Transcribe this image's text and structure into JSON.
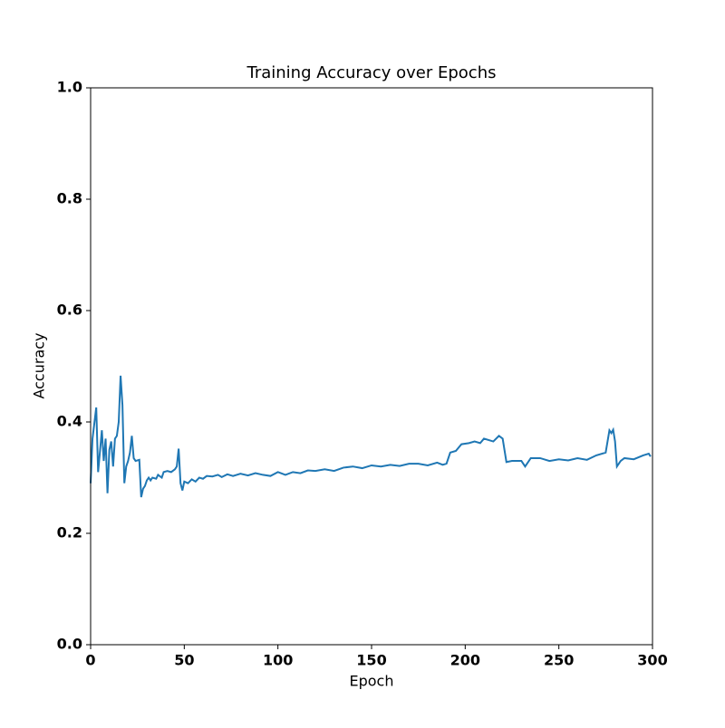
{
  "chart_data": {
    "type": "line",
    "title": "Training Accuracy over Epochs",
    "x_label": "Epoch",
    "y_label": "Accuracy",
    "x": [
      0,
      1,
      3,
      4,
      6,
      7,
      8,
      9,
      10,
      11,
      12,
      13,
      14,
      15,
      16,
      17,
      18,
      19,
      20,
      21,
      22,
      23,
      24,
      26,
      27,
      28,
      29,
      30,
      31,
      32,
      33,
      35,
      36,
      38,
      39,
      41,
      43,
      45,
      46,
      47,
      48,
      49,
      50,
      52,
      54,
      56,
      58,
      60,
      62,
      65,
      68,
      70,
      73,
      76,
      80,
      84,
      88,
      92,
      96,
      100,
      104,
      108,
      112,
      116,
      120,
      125,
      130,
      135,
      140,
      145,
      150,
      155,
      160,
      165,
      170,
      175,
      180,
      185,
      188,
      190,
      192,
      195,
      198,
      202,
      205,
      208,
      210,
      215,
      218,
      220,
      222,
      225,
      230,
      232,
      235,
      240,
      245,
      250,
      255,
      260,
      265,
      270,
      275,
      277,
      278,
      279,
      280,
      281,
      283,
      285,
      290,
      295,
      298,
      299
    ],
    "series": [
      {
        "name": "Accuracy",
        "color": "#1f77b4",
        "values": [
          0.29,
          0.37,
          0.426,
          0.31,
          0.385,
          0.33,
          0.37,
          0.272,
          0.35,
          0.365,
          0.32,
          0.37,
          0.375,
          0.4,
          0.483,
          0.43,
          0.29,
          0.32,
          0.33,
          0.345,
          0.375,
          0.335,
          0.33,
          0.332,
          0.265,
          0.28,
          0.285,
          0.295,
          0.3,
          0.295,
          0.3,
          0.298,
          0.305,
          0.3,
          0.31,
          0.312,
          0.31,
          0.315,
          0.32,
          0.352,
          0.29,
          0.277,
          0.293,
          0.29,
          0.297,
          0.293,
          0.3,
          0.298,
          0.303,
          0.302,
          0.305,
          0.301,
          0.306,
          0.303,
          0.307,
          0.304,
          0.308,
          0.305,
          0.303,
          0.31,
          0.305,
          0.31,
          0.308,
          0.313,
          0.312,
          0.315,
          0.312,
          0.318,
          0.32,
          0.317,
          0.322,
          0.32,
          0.323,
          0.321,
          0.325,
          0.325,
          0.322,
          0.327,
          0.323,
          0.325,
          0.345,
          0.348,
          0.36,
          0.362,
          0.365,
          0.362,
          0.37,
          0.365,
          0.375,
          0.37,
          0.328,
          0.33,
          0.33,
          0.32,
          0.335,
          0.335,
          0.33,
          0.333,
          0.331,
          0.335,
          0.332,
          0.34,
          0.345,
          0.385,
          0.38,
          0.386,
          0.365,
          0.32,
          0.33,
          0.335,
          0.333,
          0.34,
          0.343,
          0.338
        ]
      }
    ],
    "xlim": [
      0,
      300
    ],
    "xticks": [
      0,
      50,
      100,
      150,
      200,
      250,
      300
    ],
    "ylim": [
      0,
      1
    ],
    "yticks": [
      {
        "value": 0,
        "label": "0.0"
      },
      {
        "value": 0.2,
        "label": "0.2"
      },
      {
        "value": 0.4,
        "label": "0.4"
      },
      {
        "value": 0.6,
        "label": "0.6"
      },
      {
        "value": 0.8,
        "label": "0.8"
      },
      {
        "value": 1,
        "label": "1.0"
      }
    ],
    "grid": false
  }
}
